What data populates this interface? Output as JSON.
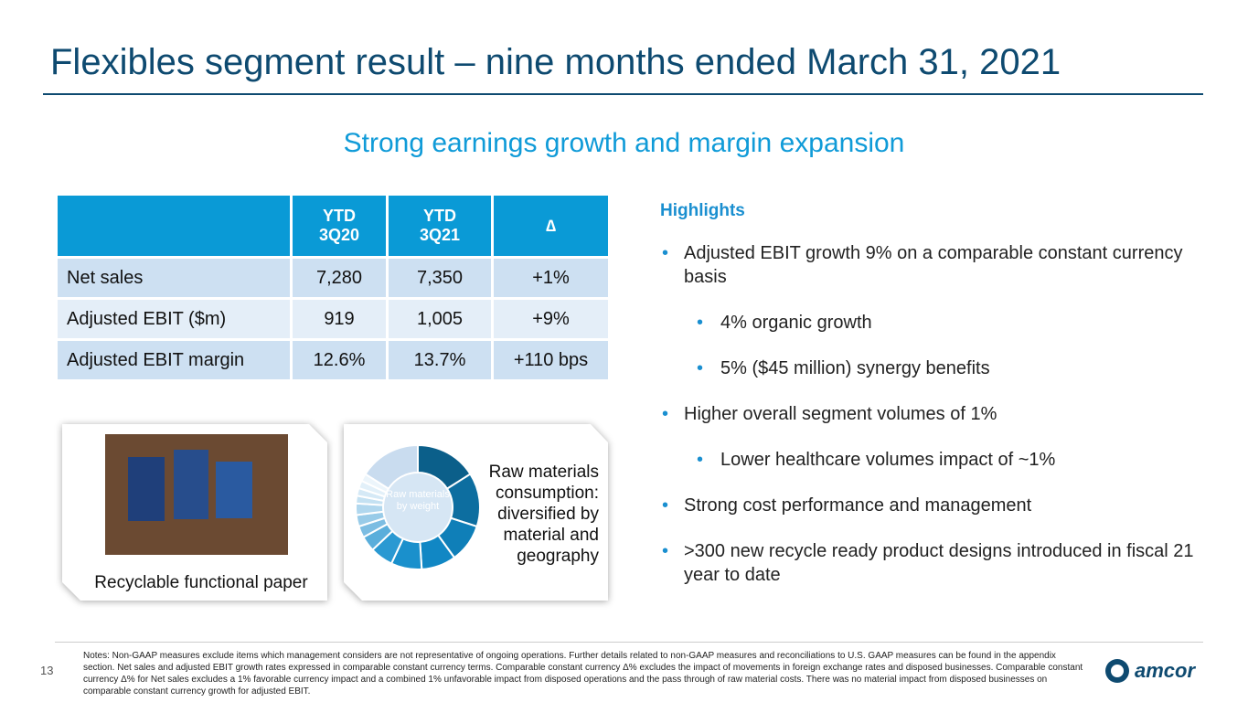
{
  "header": {
    "title": "Flexibles segment result – nine months ended March 31, 2021"
  },
  "subtitle": "Strong earnings growth and margin expansion",
  "table": {
    "columns": [
      "YTD 3Q20",
      "YTD 3Q21",
      "∆"
    ],
    "rows": [
      [
        "Net sales",
        "7,280",
        "7,350",
        "+1%"
      ],
      [
        "Adjusted EBIT ($m)",
        "919",
        "1,005",
        "+9%"
      ],
      [
        "Adjusted EBIT margin",
        "12.6%",
        "13.7%",
        "+110 bps"
      ]
    ]
  },
  "highlights": {
    "title": "Highlights",
    "bullets": [
      {
        "level": 1,
        "text": "Adjusted EBIT growth 9% on a comparable constant currency basis"
      },
      {
        "level": 2,
        "text": "4% organic growth"
      },
      {
        "level": 2,
        "text": "5% ($45 million) synergy benefits"
      },
      {
        "level": 1,
        "text": "Higher overall segment volumes of 1%"
      },
      {
        "level": 2,
        "text": "Lower healthcare volumes impact of ~1%"
      },
      {
        "level": 1,
        "text": "Strong cost performance and management"
      },
      {
        "level": 1,
        "text": ">300 new recycle ready product designs introduced in fiscal 21 year to date"
      }
    ]
  },
  "image_card": {
    "caption": "Recyclable functional paper"
  },
  "donut": {
    "center_label": "Raw materials by weight",
    "caption": "Raw materials consumption: diversified by material and geography",
    "values": [
      16,
      14,
      10,
      9,
      8,
      6,
      4,
      3,
      3,
      3,
      2,
      2,
      2,
      2,
      16
    ],
    "colors": [
      "#0b5f8a",
      "#0d6ea0",
      "#0f7fb8",
      "#1187c4",
      "#1a90cc",
      "#2a99d2",
      "#5aaedb",
      "#7cbde2",
      "#98cbe8",
      "#b0d7ee",
      "#c4e1f2",
      "#d5e9f6",
      "#e2f0f9",
      "#ecf5fb",
      "#c9dcef"
    ]
  },
  "footer": {
    "page": "13",
    "notes": "Notes:  Non-GAAP measures exclude items which management considers are not representative of ongoing operations.  Further details related to non-GAAP measures and reconciliations to U.S. GAAP measures can be found in the appendix section.   Net sales and adjusted EBIT growth rates expressed in comparable constant currency terms. Comparable constant currency Δ% excludes the impact of movements in foreign exchange rates and disposed businesses.  Comparable constant currency Δ% for Net sales excludes a 1% favorable currency impact and a combined 1% unfavorable impact from disposed operations and the pass through of raw material costs.  There was no material impact from disposed businesses on comparable constant currency growth for adjusted EBIT.",
    "logo": "amcor"
  }
}
